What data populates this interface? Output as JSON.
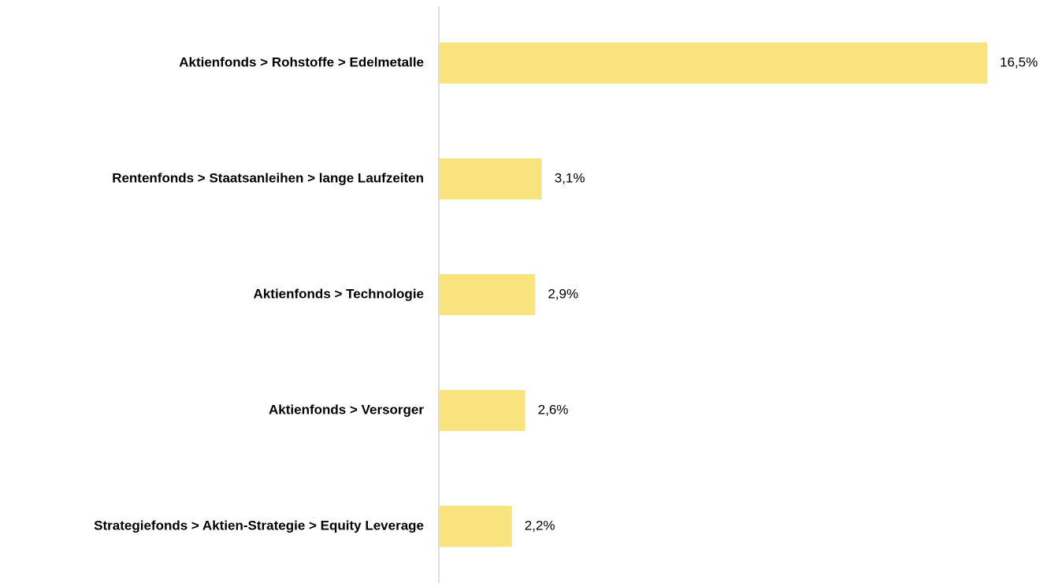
{
  "chart_data": {
    "type": "bar",
    "orientation": "horizontal",
    "categories": [
      "Aktienfonds > Rohstoffe > Edelmetalle",
      "Rentenfonds > Staatsanleihen > lange Laufzeiten",
      "Aktienfonds > Technologie",
      "Aktienfonds > Versorger",
      "Strategiefonds > Aktien-Strategie > Equity Leverage"
    ],
    "values": [
      16.5,
      3.1,
      2.9,
      2.6,
      2.2
    ],
    "value_labels": [
      "16,5%",
      "3,1%",
      "2,9%",
      "2,6%",
      "2,2%"
    ],
    "color": "#f8e37f"
  }
}
